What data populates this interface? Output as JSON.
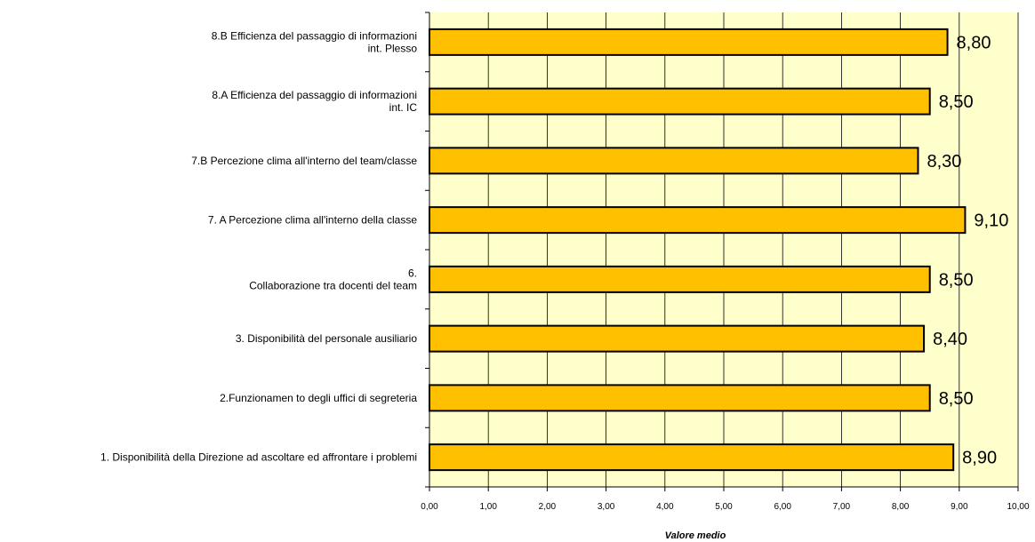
{
  "chart_data": {
    "type": "bar",
    "orientation": "horizontal",
    "categories": [
      [
        "8.B Efficienza del passaggio di informazioni",
        "int. Plesso"
      ],
      [
        "8.A  Efficienza del passaggio di informazioni",
        "int. IC"
      ],
      [
        "7.B Percezione clima all'interno del team/classe"
      ],
      [
        "7. A Percezione clima all'interno della classe"
      ],
      [
        "6.",
        "Collaborazione tra docenti del team"
      ],
      [
        "3. Disponibilità del personale ausiliario"
      ],
      [
        "2.Funzionamen to degli uffici di segreteria"
      ],
      [
        "1. Disponibilità della Direzione ad ascoltare  ed affrontare i problemi"
      ]
    ],
    "values": [
      8.8,
      8.5,
      8.3,
      9.1,
      8.5,
      8.4,
      8.5,
      8.9
    ],
    "data_labels": [
      "8,80",
      "8,50",
      "8,30",
      "9,10",
      "8,50",
      "8,40",
      "8,50",
      "8,90"
    ],
    "x_ticks": [
      "0,00",
      "1,00",
      "2,00",
      "3,00",
      "4,00",
      "5,00",
      "6,00",
      "7,00",
      "8,00",
      "9,00",
      "10,00"
    ],
    "xlim": [
      0,
      10
    ],
    "xlabel": "Valore medio",
    "ylabel": "",
    "title": "",
    "grid": true,
    "legend": "none",
    "colors": {
      "plot_background": "#FFFFCC",
      "bar_fill": "#FFC000",
      "bar_stroke": "#000000",
      "gridline": "#000000"
    }
  }
}
